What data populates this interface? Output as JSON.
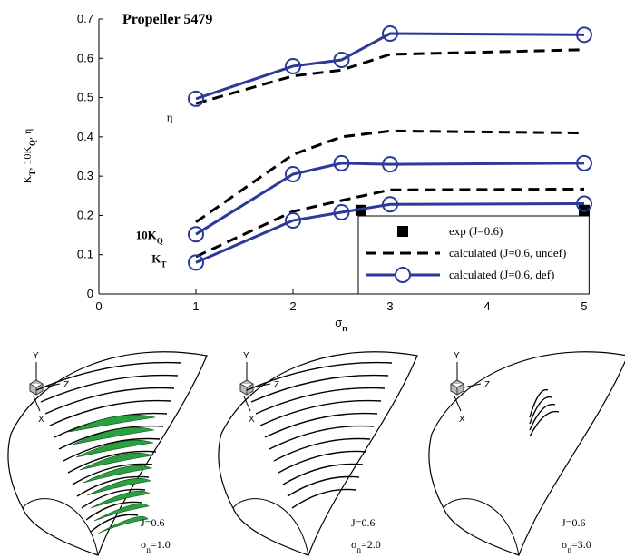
{
  "chart_data": {
    "type": "line",
    "title": "Propeller 5479",
    "xlabel": [
      "σ",
      "n"
    ],
    "ylabel": [
      "K",
      "T",
      ", 10K",
      "Q",
      ", η"
    ],
    "xlim": [
      0,
      5.05
    ],
    "ylim": [
      0,
      0.7
    ],
    "xticks": [
      0,
      1,
      2,
      3,
      4,
      5
    ],
    "yticks": [
      0,
      0.1,
      0.2,
      0.3,
      0.4,
      0.5,
      0.6,
      0.7
    ],
    "annotations": [
      [
        "η"
      ],
      [
        "10K",
        "Q"
      ],
      [
        "K",
        "T"
      ]
    ],
    "legend": "lower right",
    "series": [
      {
        "name": "exp (J=0.6)",
        "style": "square",
        "color": "#000000",
        "x": [
          2.7,
          5
        ],
        "values": [
          0.213,
          0.213
        ]
      },
      {
        "name": "calculated (J=0.6, undef)",
        "style": "dashed",
        "color": "#000000",
        "x": [
          1,
          2,
          2.5,
          3,
          5
        ],
        "curves": [
          [
            0.485,
            0.555,
            0.57,
            0.61,
            0.622
          ],
          [
            0.183,
            0.355,
            0.4,
            0.415,
            0.41
          ],
          [
            0.095,
            0.21,
            0.238,
            0.265,
            0.267
          ]
        ]
      },
      {
        "name": "calculated (J=0.6, def)",
        "style": "circle",
        "color": "#2b3a98",
        "x": [
          1,
          2,
          2.5,
          3,
          5
        ],
        "curves": [
          [
            0.497,
            0.58,
            0.596,
            0.663,
            0.66
          ],
          [
            0.152,
            0.305,
            0.333,
            0.33,
            0.333
          ],
          [
            0.08,
            0.187,
            0.208,
            0.228,
            0.23
          ]
        ]
      }
    ]
  },
  "panels": [
    {
      "axes": [
        "Y",
        "Z",
        "X"
      ],
      "j": "J=0.6",
      "sigma": [
        "σ",
        "n",
        "=1.0"
      ]
    },
    {
      "axes": [
        "Y",
        "Z",
        "X"
      ],
      "j": "J=0.6",
      "sigma": [
        "σ",
        "n",
        "=2.0"
      ]
    },
    {
      "axes": [
        "Y",
        "Z",
        "X"
      ],
      "j": "J=0.6",
      "sigma": [
        "σ",
        "n",
        "=3.0"
      ]
    }
  ]
}
